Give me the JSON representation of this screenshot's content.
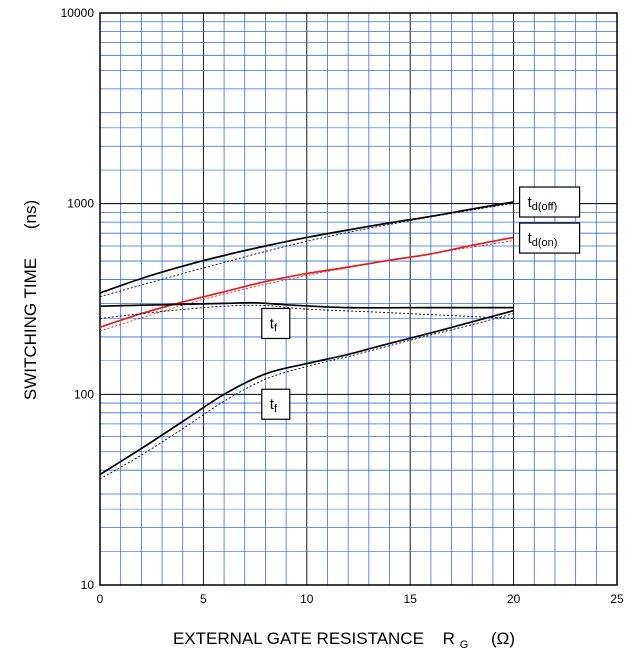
{
  "chart_data": {
    "type": "line",
    "title": "",
    "xlabel": "EXTERNAL GATE RESISTANCE",
    "xlabel_symbol": "R",
    "xlabel_symbol_sub": "G",
    "xlabel_unit": "(Ω)",
    "ylabel": "SWITCHING TIME",
    "ylabel_unit": "(ns)",
    "xlim": [
      0,
      25
    ],
    "ylim": [
      10,
      10000
    ],
    "yscale": "log",
    "grid": true,
    "x_ticks": [
      "0",
      "5",
      "10",
      "15",
      "20",
      "25"
    ],
    "y_ticks": [
      "10",
      "100",
      "1000",
      "10000"
    ],
    "colors": {
      "grid_minor": "#3a6fd8",
      "grid_major": "#000000",
      "typical": "#000000",
      "highlight": "#e02020"
    },
    "series": [
      {
        "key": "td_off",
        "color": "#000000",
        "style": "solid",
        "x": [
          0,
          2,
          4,
          6,
          8,
          10,
          12,
          14,
          16,
          18,
          20
        ],
        "values": [
          340,
          405,
          470,
          535,
          600,
          665,
          728,
          793,
          858,
          938,
          1020
        ]
      },
      {
        "key": "td_off_calc",
        "color": "#000000",
        "style": "dotted",
        "x": [
          0,
          5,
          10,
          15,
          20
        ],
        "values": [
          325,
          460,
          635,
          815,
          1005
        ]
      },
      {
        "key": "td_on",
        "color": "#e02020",
        "style": "solid",
        "x": [
          0,
          2,
          4,
          6,
          8,
          10,
          12,
          14,
          16,
          18,
          20
        ],
        "values": [
          225,
          265,
          305,
          345,
          390,
          430,
          465,
          505,
          545,
          605,
          665
        ]
      },
      {
        "key": "td_on_calc",
        "color": "#e02020",
        "style": "dotted",
        "x": [
          0,
          5,
          10,
          15,
          20
        ],
        "values": [
          215,
          315,
          420,
          525,
          640
        ]
      },
      {
        "key": "tr",
        "color": "#000000",
        "style": "solid",
        "x": [
          0,
          3,
          6,
          7.5,
          9,
          12,
          16,
          20
        ],
        "values": [
          290,
          295,
          300,
          302,
          295,
          285,
          285,
          285
        ]
      },
      {
        "key": "tr_calc",
        "color": "#000000",
        "style": "dotted",
        "x": [
          0,
          3,
          6,
          8,
          10,
          14,
          20
        ],
        "values": [
          250,
          272,
          290,
          292,
          280,
          268,
          250
        ]
      },
      {
        "key": "tf",
        "color": "#000000",
        "style": "solid",
        "x": [
          0,
          2,
          4,
          6,
          8,
          10,
          12,
          14,
          16,
          18,
          20
        ],
        "values": [
          38,
          52,
          72,
          100,
          128,
          145,
          162,
          185,
          210,
          240,
          275
        ]
      },
      {
        "key": "tf_calc",
        "color": "#000000",
        "style": "dotted",
        "x": [
          0,
          2,
          4,
          6,
          8,
          10,
          12,
          14,
          16,
          18,
          20
        ],
        "values": [
          36,
          48,
          66,
          92,
          120,
          140,
          158,
          180,
          205,
          232,
          265
        ]
      }
    ],
    "curve_labels": [
      {
        "main": "t",
        "sub": "d(off)",
        "at_x": 20.0,
        "at_y": 1020
      },
      {
        "main": "t",
        "sub": "d(on)",
        "at_x": 20.0,
        "at_y": 660
      },
      {
        "main": "t",
        "sub": "f",
        "at_x": 8.5,
        "at_y": 250
      },
      {
        "main": "t",
        "sub": "f",
        "at_x": 8.5,
        "at_y": 92
      }
    ]
  }
}
